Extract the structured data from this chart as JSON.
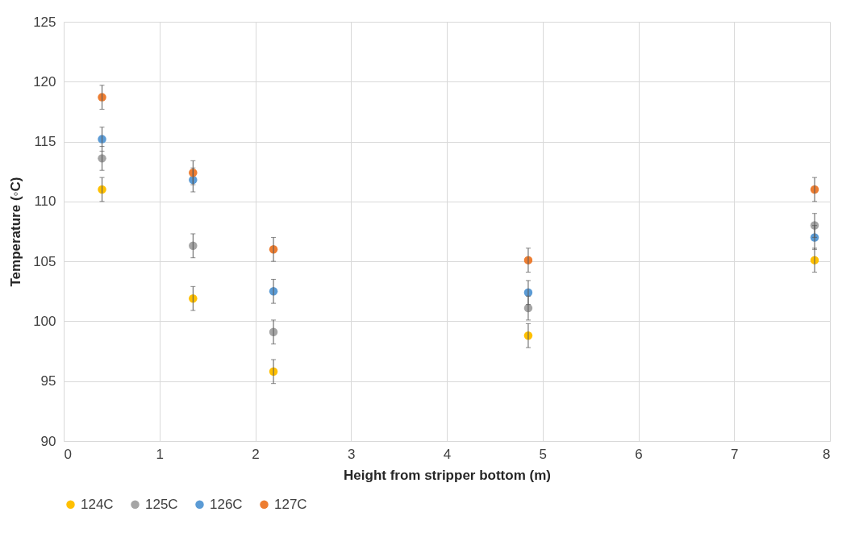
{
  "chart_data": {
    "type": "scatter",
    "xlabel": "Height from stripper bottom (m)",
    "ylabel": "Temperature (◦C)",
    "x": [
      0.4,
      1.35,
      2.19,
      4.85,
      7.84
    ],
    "xlim": [
      0,
      8
    ],
    "xticks": [
      0,
      1,
      2,
      3,
      4,
      5,
      6,
      7,
      8
    ],
    "ylim": [
      90,
      125
    ],
    "yticks": [
      90,
      95,
      100,
      105,
      110,
      115,
      120,
      125
    ],
    "grid": true,
    "legend": "bottom",
    "marker": "circle",
    "series": [
      {
        "name": "124C",
        "color": "#ffc000",
        "values": [
          111.0,
          101.9,
          95.8,
          98.8,
          105.1
        ],
        "errors": [
          1,
          1,
          1,
          1,
          1
        ]
      },
      {
        "name": "125C",
        "color": "#a5a5a5",
        "values": [
          113.6,
          106.3,
          99.1,
          101.1,
          108.0
        ],
        "errors": [
          1,
          1,
          1,
          1,
          1
        ]
      },
      {
        "name": "126C",
        "color": "#5b9bd5",
        "values": [
          115.2,
          111.8,
          102.5,
          102.4,
          107.0
        ],
        "errors": [
          1,
          1,
          1,
          1,
          1
        ]
      },
      {
        "name": "127C",
        "color": "#ed7d31",
        "values": [
          118.7,
          112.4,
          106.0,
          105.1,
          111.0
        ],
        "errors": [
          1,
          1,
          1,
          1,
          1
        ]
      }
    ]
  }
}
